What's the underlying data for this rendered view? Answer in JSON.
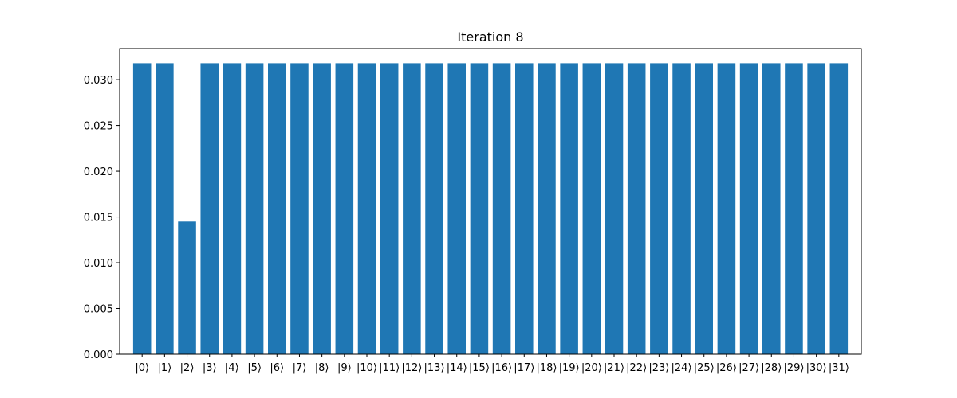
{
  "chart_data": {
    "type": "bar",
    "title": "Iteration 8",
    "xlabel": "",
    "ylabel": "",
    "categories": [
      "|0⟩",
      "|1⟩",
      "|2⟩",
      "|3⟩",
      "|4⟩",
      "|5⟩",
      "|6⟩",
      "|7⟩",
      "|8⟩",
      "|9⟩",
      "|10⟩",
      "|11⟩",
      "|12⟩",
      "|13⟩",
      "|14⟩",
      "|15⟩",
      "|16⟩",
      "|17⟩",
      "|18⟩",
      "|19⟩",
      "|20⟩",
      "|21⟩",
      "|22⟩",
      "|23⟩",
      "|24⟩",
      "|25⟩",
      "|26⟩",
      "|27⟩",
      "|28⟩",
      "|29⟩",
      "|30⟩",
      "|31⟩"
    ],
    "values": [
      0.0318,
      0.0318,
      0.0145,
      0.0318,
      0.0318,
      0.0318,
      0.0318,
      0.0318,
      0.0318,
      0.0318,
      0.0318,
      0.0318,
      0.0318,
      0.0318,
      0.0318,
      0.0318,
      0.0318,
      0.0318,
      0.0318,
      0.0318,
      0.0318,
      0.0318,
      0.0318,
      0.0318,
      0.0318,
      0.0318,
      0.0318,
      0.0318,
      0.0318,
      0.0318,
      0.0318,
      0.0318
    ],
    "ylim": [
      0,
      0.0334
    ],
    "yticks": [
      0.0,
      0.005,
      0.01,
      0.015,
      0.02,
      0.025,
      0.03
    ],
    "ytick_labels": [
      "0.000",
      "0.005",
      "0.010",
      "0.015",
      "0.020",
      "0.025",
      "0.030"
    ],
    "bar_color": "#1f77b4",
    "grid": false,
    "legend": "none"
  }
}
